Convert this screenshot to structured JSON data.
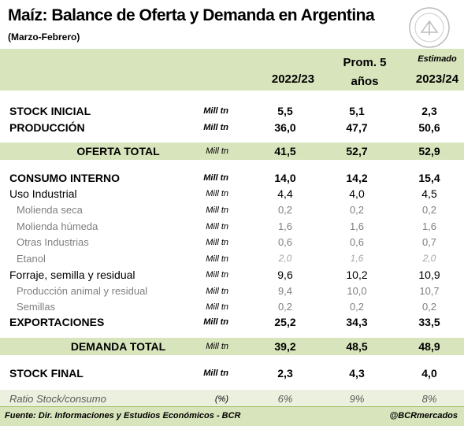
{
  "header": {
    "title": "Maíz: Balance de Oferta y Demanda en Argentina",
    "subtitle": "(Marzo-Febrero)"
  },
  "table": {
    "columns": [
      {
        "note": null,
        "label": "2022/23"
      },
      {
        "note": null,
        "label": "Prom. 5 años"
      },
      {
        "note": "Estimado",
        "label": "2023/24"
      }
    ],
    "rows": [
      {
        "label": "STOCK INICIAL",
        "unit": "Mill tn",
        "values": [
          "5,5",
          "5,1",
          "2,3"
        ]
      },
      {
        "label": "PRODUCCIÓN",
        "unit": "Mill tn",
        "values": [
          "36,0",
          "47,7",
          "50,6"
        ]
      },
      {
        "label": "OFERTA TOTAL",
        "unit": "Mill tn",
        "values": [
          "41,5",
          "52,7",
          "52,9"
        ]
      },
      {
        "label": "CONSUMO INTERNO",
        "unit": "Mill tn",
        "values": [
          "14,0",
          "14,2",
          "15,4"
        ]
      },
      {
        "label": "Uso Industrial",
        "unit": "Mill tn",
        "values": [
          "4,4",
          "4,0",
          "4,5"
        ]
      },
      {
        "label": "Molienda seca",
        "unit": "Mill tn",
        "values": [
          "0,2",
          "0,2",
          "0,2"
        ]
      },
      {
        "label": "Molienda húmeda",
        "unit": "Mill tn",
        "values": [
          "1,6",
          "1,6",
          "1,6"
        ]
      },
      {
        "label": "Otras Industrias",
        "unit": "Mill tn",
        "values": [
          "0,6",
          "0,6",
          "0,7"
        ]
      },
      {
        "label": "Etanol",
        "unit": "Mill tn",
        "values": [
          "2,0",
          "1,6",
          "2,0"
        ]
      },
      {
        "label": "Forraje, semilla y residual",
        "unit": "Mill tn",
        "values": [
          "9,6",
          "10,2",
          "10,9"
        ]
      },
      {
        "label": "Producción animal y residual",
        "unit": "Mill tn",
        "values": [
          "9,4",
          "10,0",
          "10,7"
        ]
      },
      {
        "label": "Semillas",
        "unit": "Mill tn",
        "values": [
          "0,2",
          "0,2",
          "0,2"
        ]
      },
      {
        "label": "EXPORTACIONES",
        "unit": "Mill tn",
        "values": [
          "25,2",
          "34,3",
          "33,5"
        ]
      },
      {
        "label": "DEMANDA TOTAL",
        "unit": "Mill tn",
        "values": [
          "39,2",
          "48,5",
          "48,9"
        ]
      },
      {
        "label": "STOCK FINAL",
        "unit": "Mill tn",
        "values": [
          "2,3",
          "4,3",
          "4,0"
        ]
      },
      {
        "label": "Ratio Stock/consumo",
        "unit": "(%)",
        "values": [
          "6%",
          "9%",
          "8%"
        ]
      }
    ]
  },
  "footer": {
    "source": "Fuente: Dir. Informaciones y Estudios Económicos - BCR",
    "handle": "@BCRmercados"
  }
}
